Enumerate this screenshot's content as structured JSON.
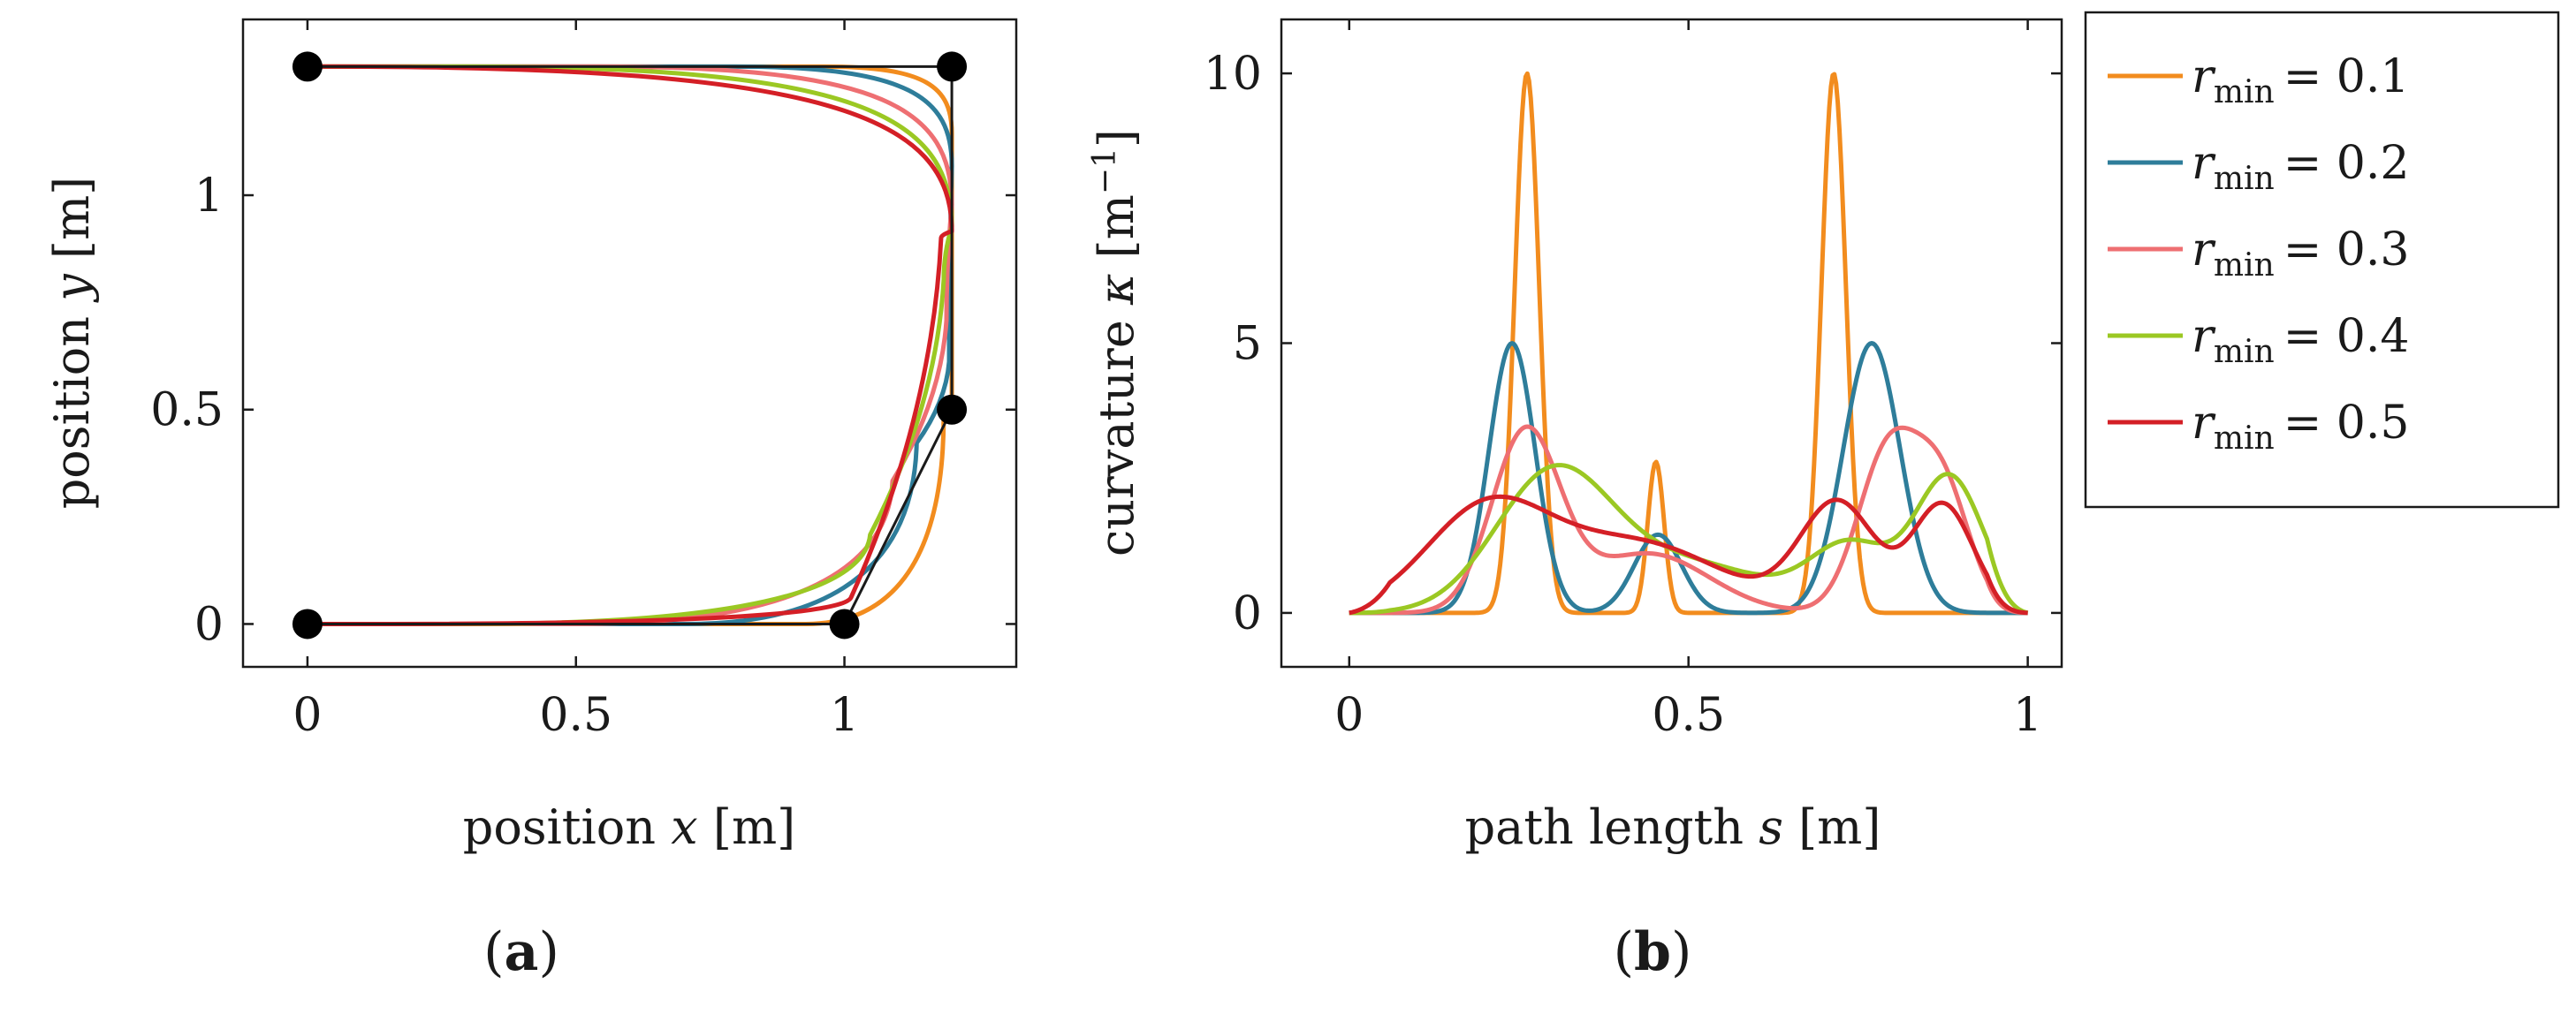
{
  "chart_data": [
    {
      "type": "line",
      "panel": "(a)",
      "panel_label": {
        "open": "(",
        "letter": "a",
        "close": ")"
      },
      "xlabel": "position x [m]",
      "ylabel": "position y [m]",
      "xlabel_parts": [
        "position ",
        "x",
        " [m]"
      ],
      "ylabel_parts": [
        "position ",
        "y",
        " [m]"
      ],
      "xlim": [
        -0.12,
        1.32
      ],
      "ylim": [
        -0.1,
        1.41
      ],
      "xticks": [
        0,
        0.5,
        1
      ],
      "xtick_labels": [
        "0",
        "0.5",
        "1"
      ],
      "yticks": [
        0,
        0.5,
        1
      ],
      "ytick_labels": [
        "0",
        "0.5",
        "1"
      ],
      "grid": false,
      "waypoints": [
        {
          "x": 0,
          "y": 1.3
        },
        {
          "x": 1.2,
          "y": 1.3
        },
        {
          "x": 1.2,
          "y": 0.5
        },
        {
          "x": 1.0,
          "y": 0.0
        },
        {
          "x": 0,
          "y": 0.0
        }
      ],
      "series": [
        {
          "name": "r_min = 0.1",
          "color": "#F28C1E",
          "rmin": 0.1
        },
        {
          "name": "r_min = 0.2",
          "color": "#2E7D9A",
          "rmin": 0.2
        },
        {
          "name": "r_min = 0.3",
          "color": "#EE6F72",
          "rmin": 0.3
        },
        {
          "name": "r_min = 0.4",
          "color": "#9BC823",
          "rmin": 0.4
        },
        {
          "name": "r_min = 0.5",
          "color": "#D41F26",
          "rmin": 0.5
        }
      ]
    },
    {
      "type": "line",
      "panel": "(b)",
      "panel_label": {
        "open": "(",
        "letter": "b",
        "close": ")"
      },
      "xlabel": "path length s [m]",
      "ylabel": "curvature κ [m⁻¹]",
      "xlabel_parts": [
        "path length ",
        "s",
        " [m]"
      ],
      "ylabel_parts": [
        "curvature ",
        "κ",
        " [m",
        "−1",
        "]"
      ],
      "xlim": [
        -0.1,
        1.05
      ],
      "ylim": [
        -1,
        11
      ],
      "xticks": [
        0,
        0.5,
        1
      ],
      "xtick_labels": [
        "0",
        "0.5",
        "1"
      ],
      "yticks": [
        0,
        5,
        10
      ],
      "ytick_labels": [
        "0",
        "5",
        "10"
      ],
      "grid": false,
      "legend": {
        "placement": "right-outside",
        "entries": [
          {
            "symbol": "r",
            "sub": "min",
            "value": "= 0.1",
            "color": "#F28C1E"
          },
          {
            "symbol": "r",
            "sub": "min",
            "value": "= 0.2",
            "color": "#2E7D9A"
          },
          {
            "symbol": "r",
            "sub": "min",
            "value": "= 0.3",
            "color": "#EE6F72"
          },
          {
            "symbol": "r",
            "sub": "min",
            "value": "= 0.4",
            "color": "#9BC823"
          },
          {
            "symbol": "r",
            "sub": "min",
            "value": "= 0.5",
            "color": "#D41F26"
          }
        ]
      },
      "series": [
        {
          "name": "r_min = 0.1",
          "color": "#F28C1E",
          "peaks": [
            {
              "s": 0.262,
              "k": 10.0,
              "w": 0.018
            },
            {
              "s": 0.452,
              "k": 2.8,
              "w": 0.012
            },
            {
              "s": 0.714,
              "k": 10.0,
              "w": 0.018
            }
          ]
        },
        {
          "name": "r_min = 0.2",
          "color": "#2E7D9A",
          "peaks": [
            {
              "s": 0.24,
              "k": 5.0,
              "w": 0.034
            },
            {
              "s": 0.455,
              "k": 1.45,
              "w": 0.035
            },
            {
              "s": 0.77,
              "k": 5.0,
              "w": 0.042
            }
          ]
        },
        {
          "name": "r_min = 0.3",
          "color": "#EE6F72",
          "peaks": [
            {
              "s": 0.26,
              "k": 3.3,
              "w": 0.05
            },
            {
              "s": 0.44,
              "k": 1.1,
              "w": 0.09
            },
            {
              "s": 0.795,
              "k": 3.0,
              "w": 0.045
            },
            {
              "s": 0.875,
              "k": 2.2,
              "w": 0.04
            }
          ]
        },
        {
          "name": "r_min = 0.4",
          "color": "#9BC823",
          "peaks": [
            {
              "s": 0.3,
              "k": 2.5,
              "w": 0.085
            },
            {
              "s": 0.5,
              "k": 0.9,
              "w": 0.12
            },
            {
              "s": 0.74,
              "k": 1.2,
              "w": 0.06
            },
            {
              "s": 0.885,
              "k": 2.5,
              "w": 0.05
            }
          ]
        },
        {
          "name": "r_min = 0.5",
          "color": "#D41F26",
          "peaks": [
            {
              "s": 0.2,
              "k": 1.8,
              "w": 0.09
            },
            {
              "s": 0.42,
              "k": 1.3,
              "w": 0.13
            },
            {
              "s": 0.72,
              "k": 2.0,
              "w": 0.055
            },
            {
              "s": 0.875,
              "k": 2.0,
              "w": 0.045
            }
          ]
        }
      ]
    }
  ]
}
